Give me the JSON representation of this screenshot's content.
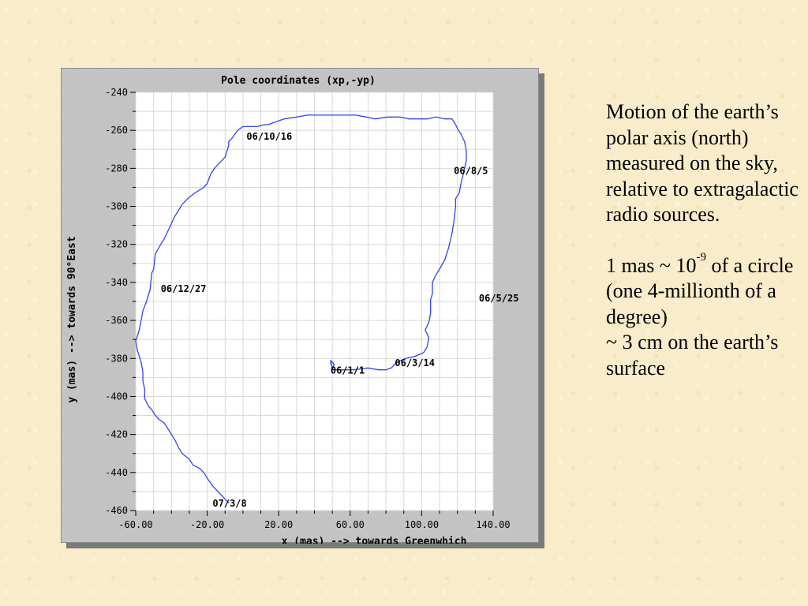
{
  "chart_data": {
    "type": "line",
    "title": "Pole coordinates (xp,-yp)",
    "xlabel": "x (mas) --> towards Greenwhich",
    "ylabel": "y (mas) --> towards 90°East",
    "xlim": [
      -60,
      140
    ],
    "ylim": [
      -460,
      -240
    ],
    "x_ticks": [
      -60,
      -20,
      20,
      60,
      100,
      140
    ],
    "x_tick_labels": [
      "-60.00",
      "-20.00",
      "20.00",
      "60.00",
      "100.00",
      "140.00"
    ],
    "y_ticks": [
      -240,
      -260,
      -280,
      -300,
      -320,
      -340,
      -360,
      -380,
      -400,
      -420,
      -440,
      -460
    ],
    "y_tick_labels": [
      "-240",
      "-260",
      "-280",
      "-300",
      "-320",
      "-340",
      "-360",
      "-380",
      "-400",
      "-420",
      "-440",
      "-460"
    ],
    "grid": true,
    "line_color": "#3344ee",
    "series": [
      {
        "x": [
          49,
          50,
          49,
          51,
          50,
          53,
          56,
          62,
          70,
          76,
          80,
          83,
          86,
          91,
          96,
          101,
          103,
          104,
          102,
          104,
          105,
          105,
          106,
          106,
          108,
          110,
          113,
          115,
          117,
          118,
          119,
          119,
          121,
          122,
          123,
          124,
          125,
          125,
          124,
          122,
          120,
          119,
          117,
          113,
          108,
          103,
          98,
          93,
          88,
          81,
          74,
          69,
          63,
          56,
          48,
          42,
          36,
          30,
          23,
          17,
          14,
          12,
          8,
          4,
          0,
          -3,
          -6,
          -8,
          -8,
          -10,
          -13,
          -16,
          -18,
          -20,
          -22,
          -27,
          -31,
          -34,
          -36,
          -38,
          -40,
          -42,
          -44,
          -46,
          -49,
          -50,
          -51,
          -52,
          -54,
          -56,
          -57,
          -58,
          -60,
          -59,
          -57,
          -56,
          -56,
          -55,
          -55,
          -53,
          -51,
          -49,
          -47,
          -44,
          -42,
          -40,
          -38,
          -36,
          -34,
          -30,
          -28,
          -26,
          -24,
          -22,
          -20,
          -17,
          -14,
          -11,
          -8
        ],
        "y": [
          -382,
          -385,
          -381,
          -383,
          -386,
          -386,
          -386,
          -386,
          -385,
          -386,
          -386,
          -385,
          -382,
          -380,
          -379,
          -377,
          -374,
          -369,
          -365,
          -361,
          -356,
          -349,
          -346,
          -340,
          -336,
          -333,
          -328,
          -322,
          -314,
          -308,
          -300,
          -296,
          -293,
          -288,
          -284,
          -280,
          -276,
          -271,
          -266,
          -262,
          -259,
          -257,
          -254,
          -254,
          -253,
          -254,
          -254,
          -254,
          -253,
          -253,
          -254,
          -253,
          -252,
          -252,
          -252,
          -252,
          -252,
          -253,
          -254,
          -256,
          -257,
          -257,
          -258,
          -258,
          -258,
          -260,
          -264,
          -266,
          -268,
          -274,
          -277,
          -280,
          -283,
          -288,
          -290,
          -293,
          -296,
          -299,
          -302,
          -305,
          -309,
          -313,
          -317,
          -320,
          -325,
          -333,
          -335,
          -344,
          -350,
          -355,
          -360,
          -365,
          -371,
          -376,
          -382,
          -387,
          -392,
          -396,
          -401,
          -405,
          -407,
          -410,
          -412,
          -414,
          -417,
          -420,
          -423,
          -427,
          -430,
          -433,
          -436,
          -437,
          -438,
          -440,
          -443,
          -447,
          -450,
          -453,
          -456
        ]
      }
    ],
    "annotations": [
      {
        "text": "06/10/16",
        "x": 2,
        "y": -265
      },
      {
        "text": "06/8/5",
        "x": 118,
        "y": -283
      },
      {
        "text": "06/12/27",
        "x": -46,
        "y": -345
      },
      {
        "text": "06/5/25",
        "x": 132,
        "y": -350
      },
      {
        "text": "06/3/14",
        "x": 85,
        "y": -384
      },
      {
        "text": "06/1/1",
        "x": 49,
        "y": -388
      },
      {
        "text": "07/3/8",
        "x": -17,
        "y": -458
      }
    ]
  },
  "side_text": {
    "p1": "Motion of the earth’s polar axis (north) measured on the sky, relative to extragalactic radio sources.",
    "p2_pre": "1 mas ~ 10",
    "p2_sup": "-9",
    "p2_post": " of a circle (one 4-millionth of a degree)",
    "p3": "~ 3 cm on the earth’s surface"
  }
}
